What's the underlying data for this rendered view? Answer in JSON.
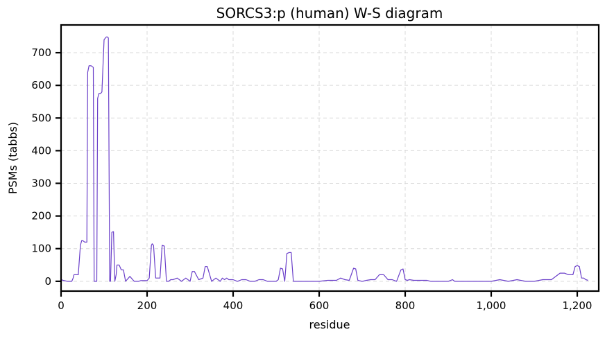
{
  "chart_data": {
    "type": "line",
    "title": "SORCS3:p (human) W-S diagram",
    "xlabel": "residue",
    "ylabel": "PSMs (tabbs)",
    "xlim": [
      0,
      1250
    ],
    "ylim": [
      -30,
      785
    ],
    "xticks": [
      0,
      200,
      400,
      600,
      800,
      1000,
      1200
    ],
    "xtick_labels": [
      "0",
      "200",
      "400",
      "600",
      "800",
      "1,000",
      "1,200"
    ],
    "yticks": [
      0,
      100,
      200,
      300,
      400,
      500,
      600,
      700
    ],
    "ytick_labels": [
      "0",
      "100",
      "200",
      "300",
      "400",
      "500",
      "600",
      "700"
    ],
    "grid": true,
    "line_color": "#6a3fc9",
    "series": [
      {
        "x": [
          0,
          5,
          15,
          25,
          28,
          30,
          40,
          45,
          48,
          50,
          55,
          60,
          62,
          65,
          70,
          75,
          77,
          80,
          83,
          85,
          88,
          92,
          95,
          100,
          105,
          108,
          110,
          113,
          115,
          118,
          122,
          125,
          128,
          130,
          135,
          140,
          145,
          150,
          160,
          170,
          175,
          180,
          185,
          200,
          205,
          210,
          212,
          215,
          220,
          230,
          235,
          240,
          245,
          250,
          255,
          260,
          270,
          280,
          290,
          300,
          305,
          310,
          320,
          330,
          335,
          340,
          350,
          360,
          370,
          375,
          380,
          385,
          390,
          400,
          410,
          420,
          430,
          440,
          450,
          460,
          470,
          480,
          490,
          500,
          505,
          510,
          515,
          520,
          525,
          530,
          535,
          540,
          550,
          600,
          620,
          640,
          650,
          660,
          670,
          680,
          685,
          690,
          700,
          710,
          720,
          730,
          740,
          750,
          760,
          770,
          780,
          790,
          795,
          800,
          805,
          810,
          820,
          830,
          840,
          850,
          860,
          880,
          900,
          910,
          915,
          920,
          930,
          960,
          1000,
          1020,
          1040,
          1060,
          1080,
          1100,
          1120,
          1140,
          1160,
          1165,
          1170,
          1180,
          1190,
          1195,
          1200,
          1205,
          1210,
          1215,
          1220,
          1225
        ],
        "y": [
          5,
          3,
          0,
          0,
          10,
          20,
          20,
          110,
          125,
          125,
          120,
          120,
          640,
          660,
          660,
          655,
          0,
          0,
          0,
          560,
          575,
          575,
          580,
          740,
          748,
          748,
          745,
          0,
          0,
          150,
          152,
          0,
          20,
          50,
          50,
          35,
          35,
          0,
          15,
          0,
          0,
          0,
          2,
          2,
          10,
          110,
          115,
          110,
          10,
          10,
          110,
          108,
          0,
          0,
          5,
          5,
          10,
          0,
          10,
          0,
          30,
          30,
          5,
          10,
          45,
          45,
          0,
          10,
          0,
          10,
          5,
          10,
          5,
          5,
          0,
          5,
          5,
          0,
          0,
          5,
          5,
          0,
          0,
          0,
          5,
          40,
          38,
          0,
          85,
          88,
          88,
          0,
          0,
          0,
          3,
          3,
          10,
          5,
          3,
          40,
          38,
          3,
          0,
          3,
          5,
          5,
          20,
          20,
          5,
          5,
          0,
          35,
          38,
          5,
          3,
          5,
          3,
          3,
          3,
          3,
          0,
          0,
          0,
          5,
          0,
          0,
          0,
          0,
          0,
          5,
          0,
          5,
          0,
          0,
          5,
          5,
          25,
          25,
          25,
          20,
          20,
          45,
          48,
          45,
          10,
          10,
          5,
          3
        ]
      }
    ]
  }
}
